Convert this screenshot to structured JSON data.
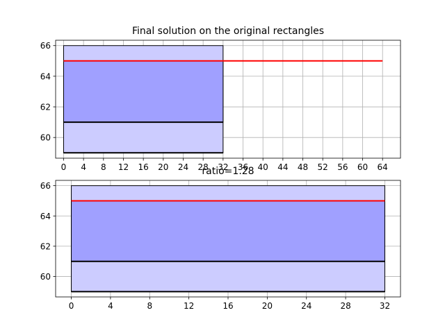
{
  "chart_data": [
    {
      "type": "bar",
      "title": "Final solution on the original rectangles",
      "xlabel": "",
      "ylabel": "",
      "xlim": [
        -1.6,
        67.6
      ],
      "ylim": [
        58.65,
        66.35
      ],
      "x_ticks": [
        0,
        4,
        8,
        12,
        16,
        20,
        24,
        28,
        32,
        36,
        40,
        44,
        48,
        52,
        56,
        60,
        64
      ],
      "y_ticks": [
        60,
        62,
        64,
        66
      ],
      "grid": true,
      "rectangles": [
        {
          "x0": 0,
          "x1": 32,
          "y0": 59,
          "y1": 66,
          "fill": "#ccccff"
        },
        {
          "x0": 0,
          "x1": 32,
          "y0": 61,
          "y1": 65,
          "fill": "#a0a0ff"
        }
      ],
      "lines": [
        {
          "y": 59,
          "x0": 0,
          "x1": 32,
          "color": "#000000"
        },
        {
          "y": 61,
          "x0": 0,
          "x1": 32,
          "color": "#000000"
        },
        {
          "y": 65,
          "x0": 0,
          "x1": 64,
          "color": "#ff0000"
        }
      ]
    },
    {
      "type": "bar",
      "title": "ratio=1.28",
      "xlabel": "",
      "ylabel": "",
      "xlim": [
        -1.6,
        33.6
      ],
      "ylim": [
        58.65,
        66.35
      ],
      "x_ticks": [
        0,
        4,
        8,
        12,
        16,
        20,
        24,
        28,
        32
      ],
      "y_ticks": [
        60,
        62,
        64,
        66
      ],
      "grid": true,
      "rectangles": [
        {
          "x0": 0,
          "x1": 32,
          "y0": 59,
          "y1": 66,
          "fill": "#ccccff"
        },
        {
          "x0": 0,
          "x1": 32,
          "y0": 61,
          "y1": 65,
          "fill": "#a0a0ff"
        }
      ],
      "lines": [
        {
          "y": 59,
          "x0": 0,
          "x1": 32,
          "color": "#000000"
        },
        {
          "y": 61,
          "x0": 0,
          "x1": 32,
          "color": "#000000"
        },
        {
          "y": 65,
          "x0": 0,
          "x1": 32,
          "color": "#ff0000"
        }
      ]
    }
  ]
}
